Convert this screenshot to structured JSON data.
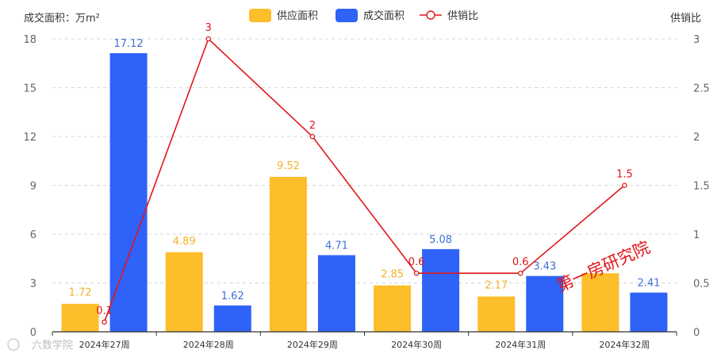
{
  "chart_data": {
    "type": "bar",
    "categories": [
      "2024年27周",
      "2024年28周",
      "2024年29周",
      "2024年30周",
      "2024年31周",
      "2024年32周"
    ],
    "series": [
      {
        "name": "供应面积",
        "type": "bar",
        "axis": "left",
        "color": "#FDBE2B",
        "label_color": "#F2B22A",
        "values": [
          1.72,
          4.89,
          9.52,
          2.85,
          2.17,
          3.6
        ],
        "labels": [
          "1.72",
          "4.89",
          "9.52",
          "2.85",
          "2.17",
          ""
        ]
      },
      {
        "name": "成交面积",
        "type": "bar",
        "axis": "left",
        "color": "#2F62F7",
        "label_color": "#3F6FD8",
        "values": [
          17.12,
          1.62,
          4.71,
          5.08,
          3.43,
          2.41
        ],
        "labels": [
          "17.12",
          "1.62",
          "4.71",
          "5.08",
          "3.43",
          "2.41"
        ]
      },
      {
        "name": "供销比",
        "type": "line",
        "axis": "right",
        "color": "#E0161B",
        "values": [
          0.1,
          3,
          2,
          0.6,
          0.6,
          1.5
        ],
        "labels": [
          "0.1",
          "3",
          "2",
          "0.6",
          "0.6",
          "1.5"
        ]
      }
    ],
    "ylabel": "成交面积：万m²",
    "y2label": "供销比",
    "ylim": [
      0,
      18
    ],
    "yticks": [
      0,
      3,
      6,
      9,
      12,
      15,
      18
    ],
    "y2lim": [
      0,
      3
    ],
    "y2ticks": [
      "0",
      "0.5",
      "1",
      "1.5",
      "2",
      "2.5",
      "3"
    ],
    "grid": true,
    "legend_position": "top-center",
    "watermark": "第一房研究院",
    "watermark2": "六数学院"
  }
}
